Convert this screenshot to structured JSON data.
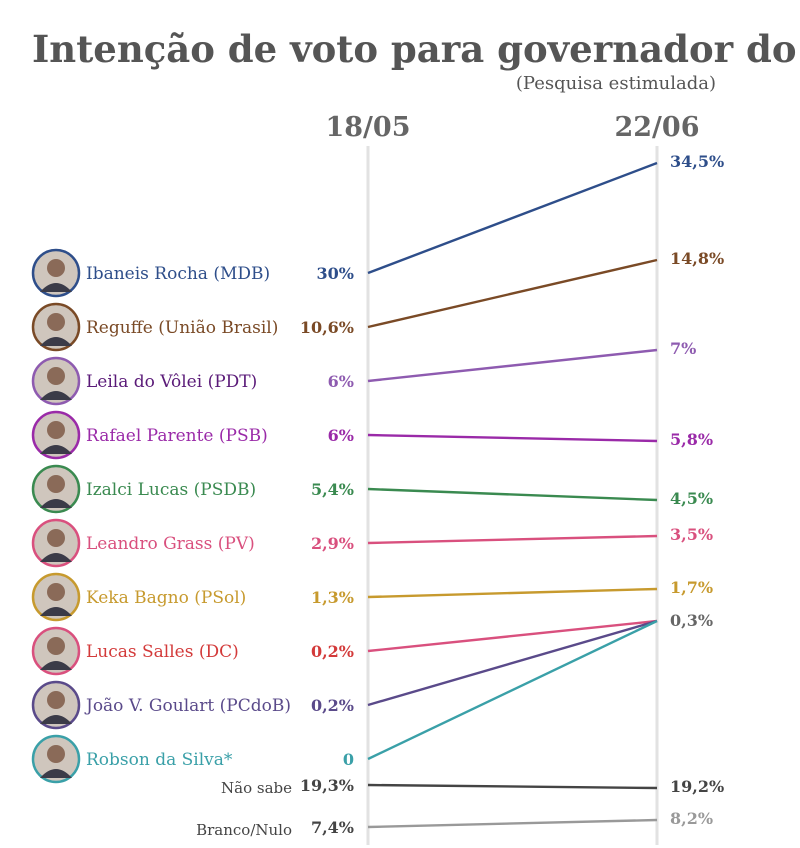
{
  "chart_data": {
    "type": "line",
    "title": "Intenção de voto para governador do DF",
    "subtitle": "(Pesquisa estimulada)",
    "x": [
      "18/05",
      "22/06"
    ],
    "series": [
      {
        "name": "Ibaneis Rocha (MDB)",
        "values": [
          30,
          34.5
        ],
        "labels": [
          "30%",
          "34,5%"
        ],
        "color": "#2e4e8a"
      },
      {
        "name": "Reguffe (União Brasil)",
        "values": [
          10.6,
          14.8
        ],
        "labels": [
          "10,6%",
          "14,8%"
        ],
        "color": "#7a4a26"
      },
      {
        "name": "Leila do Vôlei (PDT)",
        "values": [
          6,
          7
        ],
        "labels": [
          "6%",
          "7%"
        ],
        "color": "#8e5bb0",
        "name_color": "#5a1a78"
      },
      {
        "name": "Rafael Parente (PSB)",
        "values": [
          6,
          5.8
        ],
        "labels": [
          "6%",
          "5,8%"
        ],
        "color": "#9a2aa8"
      },
      {
        "name": "Izalci Lucas (PSDB)",
        "values": [
          5.4,
          4.5
        ],
        "labels": [
          "5,4%",
          "4,5%"
        ],
        "color": "#3a8a50"
      },
      {
        "name": "Leandro Grass (PV)",
        "values": [
          2.9,
          3.5
        ],
        "labels": [
          "2,9%",
          "3,5%"
        ],
        "color": "#d9507e"
      },
      {
        "name": "Keka Bagno (PSol)",
        "values": [
          1.3,
          1.7
        ],
        "labels": [
          "1,3%",
          "1,7%"
        ],
        "color": "#c79a2e"
      },
      {
        "name": "Lucas Salles (DC)",
        "values": [
          0.2,
          0.3
        ],
        "labels": [
          "0,2%",
          "0,3%"
        ],
        "color": "#d9507e",
        "name_color": "#d33a3a",
        "value_color": "#d33a3a"
      },
      {
        "name": "João V. Goulart (PCdoB)",
        "values": [
          0.2,
          0.3
        ],
        "labels": [
          "0,2%",
          "0,3%"
        ],
        "color": "#5a4a8a"
      },
      {
        "name": "Robson da Silva*",
        "values": [
          0,
          0.3
        ],
        "labels": [
          "0",
          "0,3%"
        ],
        "color": "#3aa0a8"
      }
    ],
    "others": [
      {
        "name": "Não sabe",
        "values": [
          19.3,
          19.2
        ],
        "labels": [
          "19,3%",
          "19,2%"
        ],
        "color": "#444444"
      },
      {
        "name": "Branco/Nulo",
        "values": [
          7.4,
          8.2
        ],
        "labels": [
          "7,4%",
          "8,2%"
        ],
        "color": "#999999"
      }
    ],
    "shared_end_label": {
      "label": "0,3%",
      "color": "#666666"
    }
  }
}
